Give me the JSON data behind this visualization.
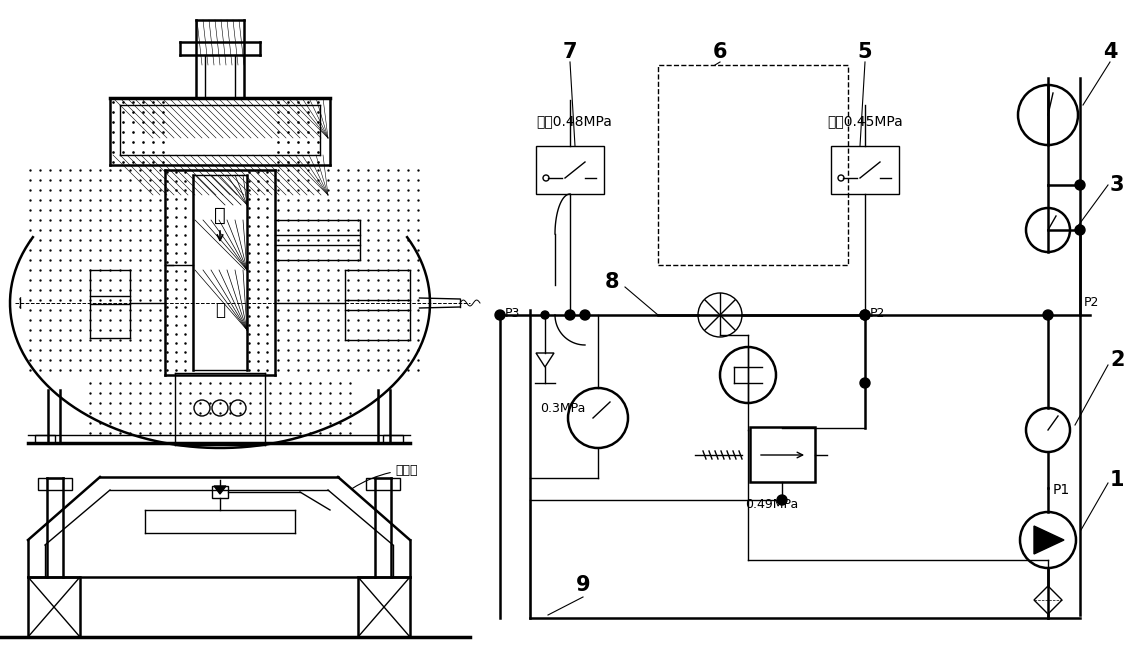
{
  "bg_color": "#ffffff",
  "line_color": "#000000",
  "labels": {
    "kai": "开",
    "guan": "关",
    "shui_zhui": "泄水锥",
    "ting_beng": "停泵0.48MPa",
    "qi_beng": "启泵0.45MPa",
    "p03": "0.3MPa",
    "p049": "0.49MPa",
    "p3": "P3",
    "p2_mid": "P2",
    "p2_right": "P2",
    "p1": "P1",
    "num7": "7",
    "num6": "6",
    "num5": "5",
    "num4": "4",
    "num3": "3",
    "num2": "2",
    "num1": "1",
    "num8": "8",
    "num9": "9"
  },
  "figsize": [
    11.47,
    6.45
  ],
  "dpi": 100
}
